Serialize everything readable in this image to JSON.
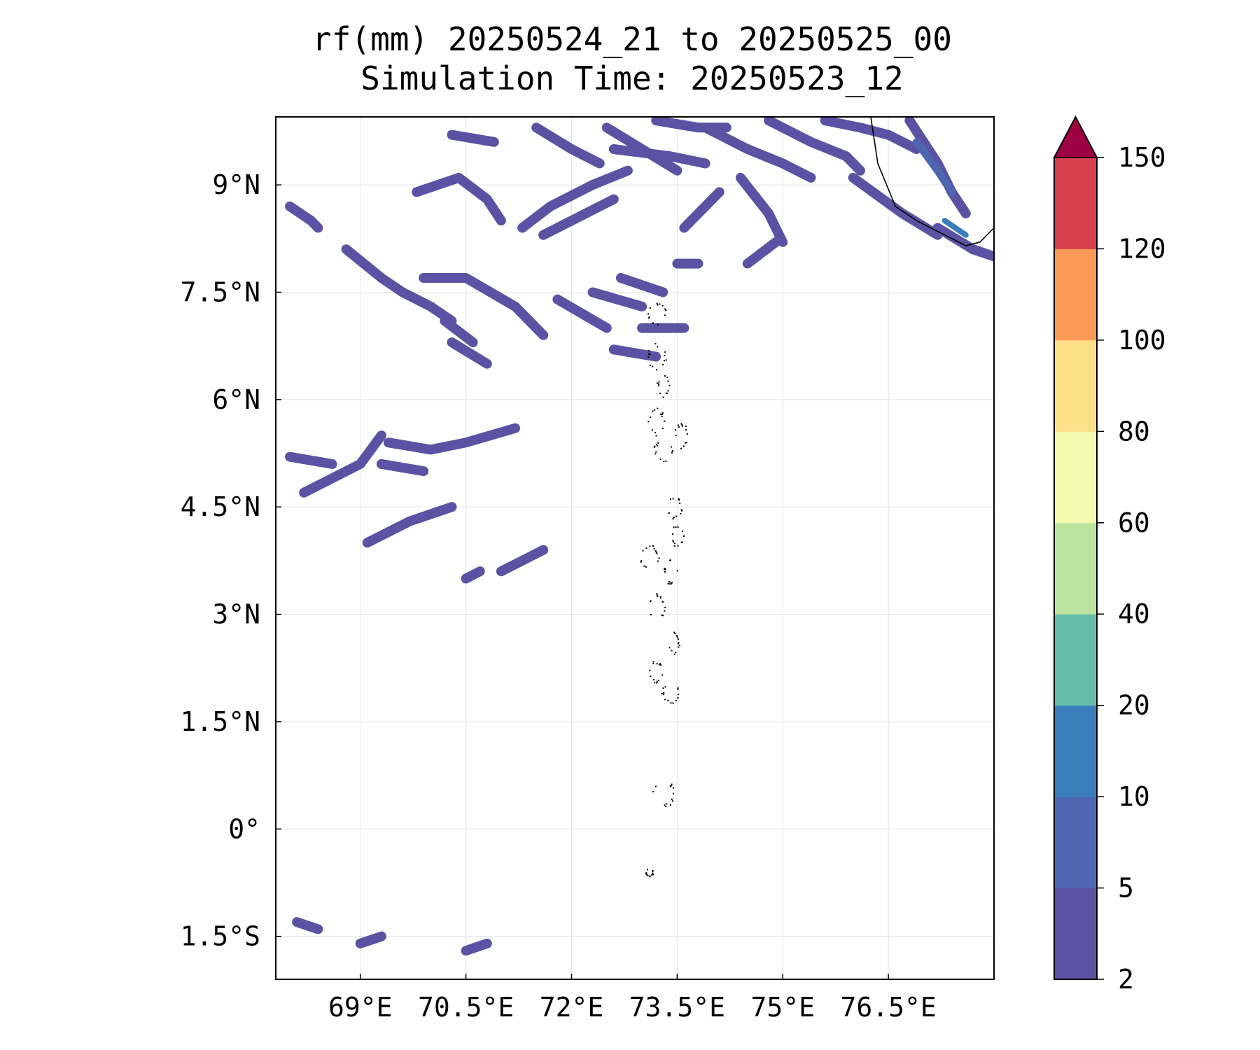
{
  "chart_data": {
    "type": "contour-map",
    "title": "rf(mm) 20250524_21 to 20250525_00",
    "subtitle": "Simulation Time: 20250523_12",
    "xlabel": "",
    "ylabel": "",
    "xlim": [
      67.8,
      78.0
    ],
    "ylim": [
      -2.1,
      9.95
    ],
    "x_ticks": [
      {
        "value": 69.0,
        "label": "69°E"
      },
      {
        "value": 70.5,
        "label": "70.5°E"
      },
      {
        "value": 72.0,
        "label": "72°E"
      },
      {
        "value": 73.5,
        "label": "73.5°E"
      },
      {
        "value": 75.0,
        "label": "75°E"
      },
      {
        "value": 76.5,
        "label": "76.5°E"
      }
    ],
    "y_ticks": [
      {
        "value": 9.0,
        "label": "9°N"
      },
      {
        "value": 7.5,
        "label": "7.5°N"
      },
      {
        "value": 6.0,
        "label": "6°N"
      },
      {
        "value": 4.5,
        "label": "4.5°N"
      },
      {
        "value": 3.0,
        "label": "3°N"
      },
      {
        "value": 1.5,
        "label": "1.5°N"
      },
      {
        "value": 0.0,
        "label": "0°"
      },
      {
        "value": -1.5,
        "label": "1.5°S"
      }
    ],
    "grid": true,
    "legend": "colorbar-right",
    "colorbar": {
      "levels": [
        2,
        5,
        10,
        20,
        40,
        60,
        80,
        100,
        120,
        150
      ],
      "labels": [
        "2",
        "5",
        "10",
        "20",
        "40",
        "60",
        "80",
        "100",
        "120",
        "150"
      ],
      "colors": [
        "#5b52a3",
        "#4f66b0",
        "#3a7fb9",
        "#63bda9",
        "#bce39f",
        "#f3faaf",
        "#fde18a",
        "#f99a56",
        "#d8404e",
        "#9e0142"
      ],
      "extend": "max"
    },
    "rain_bands": [
      {
        "points": [
          [
            68.0,
            8.7
          ],
          [
            68.3,
            8.5
          ],
          [
            68.4,
            8.4
          ]
        ],
        "level": 0
      },
      {
        "points": [
          [
            68.8,
            8.1
          ],
          [
            69.3,
            7.7
          ],
          [
            69.6,
            7.5
          ],
          [
            70.0,
            7.3
          ],
          [
            70.3,
            7.1
          ]
        ],
        "level": 0
      },
      {
        "points": [
          [
            69.8,
            8.9
          ],
          [
            70.4,
            9.1
          ],
          [
            70.8,
            8.8
          ],
          [
            71.0,
            8.5
          ]
        ],
        "level": 0
      },
      {
        "points": [
          [
            70.3,
            9.7
          ],
          [
            70.9,
            9.6
          ]
        ],
        "level": 0
      },
      {
        "points": [
          [
            71.3,
            8.4
          ],
          [
            71.7,
            8.7
          ],
          [
            72.3,
            9.0
          ],
          [
            72.8,
            9.2
          ]
        ],
        "level": 0
      },
      {
        "points": [
          [
            71.5,
            9.8
          ],
          [
            72.0,
            9.5
          ],
          [
            72.4,
            9.3
          ]
        ],
        "level": 0
      },
      {
        "points": [
          [
            72.5,
            9.8
          ],
          [
            73.0,
            9.5
          ],
          [
            73.5,
            9.2
          ]
        ],
        "level": 0
      },
      {
        "points": [
          [
            72.6,
            9.5
          ],
          [
            73.4,
            9.4
          ],
          [
            73.9,
            9.3
          ]
        ],
        "level": 0
      },
      {
        "points": [
          [
            73.2,
            9.9
          ],
          [
            73.8,
            9.8
          ],
          [
            74.2,
            9.8
          ]
        ],
        "level": 0
      },
      {
        "points": [
          [
            73.9,
            9.8
          ],
          [
            74.5,
            9.5
          ],
          [
            75.0,
            9.3
          ],
          [
            75.4,
            9.1
          ]
        ],
        "level": 0
      },
      {
        "points": [
          [
            74.8,
            9.9
          ],
          [
            75.4,
            9.6
          ],
          [
            75.9,
            9.4
          ],
          [
            76.1,
            9.2
          ]
        ],
        "level": 0
      },
      {
        "points": [
          [
            75.6,
            9.9
          ],
          [
            76.1,
            9.8
          ],
          [
            76.5,
            9.7
          ],
          [
            76.9,
            9.5
          ]
        ],
        "level": 0
      },
      {
        "points": [
          [
            74.4,
            9.1
          ],
          [
            74.8,
            8.6
          ],
          [
            75.0,
            8.2
          ]
        ],
        "level": 0
      },
      {
        "points": [
          [
            76.0,
            9.1
          ],
          [
            76.7,
            8.6
          ],
          [
            77.2,
            8.3
          ]
        ],
        "level": 0
      },
      {
        "points": [
          [
            76.8,
            9.9
          ],
          [
            77.2,
            9.3
          ],
          [
            77.4,
            8.9
          ],
          [
            77.6,
            8.6
          ]
        ],
        "level": 0
      },
      {
        "points": [
          [
            77.2,
            8.4
          ],
          [
            77.7,
            8.1
          ],
          [
            78.0,
            8.0
          ]
        ],
        "level": 0
      },
      {
        "points": [
          [
            76.9,
            9.6
          ],
          [
            77.2,
            9.2
          ],
          [
            77.4,
            8.9
          ]
        ],
        "level": 1
      },
      {
        "points": [
          [
            77.3,
            8.5
          ],
          [
            77.6,
            8.3
          ]
        ],
        "level": 2
      },
      {
        "points": [
          [
            71.6,
            8.3
          ],
          [
            72.2,
            8.6
          ],
          [
            72.6,
            8.8
          ]
        ],
        "level": 0
      },
      {
        "points": [
          [
            73.6,
            8.4
          ],
          [
            74.1,
            8.9
          ]
        ],
        "level": 0
      },
      {
        "points": [
          [
            74.5,
            7.9
          ],
          [
            74.9,
            8.2
          ]
        ],
        "level": 0
      },
      {
        "points": [
          [
            69.9,
            7.7
          ],
          [
            70.5,
            7.7
          ],
          [
            71.2,
            7.3
          ],
          [
            71.6,
            6.9
          ]
        ],
        "level": 0
      },
      {
        "points": [
          [
            70.2,
            7.1
          ],
          [
            70.6,
            6.8
          ]
        ],
        "level": 0
      },
      {
        "points": [
          [
            70.3,
            6.8
          ],
          [
            70.8,
            6.5
          ]
        ],
        "level": 0
      },
      {
        "points": [
          [
            71.8,
            7.4
          ],
          [
            72.5,
            7.0
          ]
        ],
        "level": 0
      },
      {
        "points": [
          [
            72.3,
            7.5
          ],
          [
            73.0,
            7.3
          ]
        ],
        "level": 0
      },
      {
        "points": [
          [
            73.0,
            7.0
          ],
          [
            73.6,
            7.0
          ]
        ],
        "level": 0
      },
      {
        "points": [
          [
            68.0,
            5.2
          ],
          [
            68.6,
            5.1
          ]
        ],
        "level": 0
      },
      {
        "points": [
          [
            68.2,
            4.7
          ],
          [
            69.0,
            5.1
          ],
          [
            69.3,
            5.5
          ]
        ],
        "level": 0
      },
      {
        "points": [
          [
            69.4,
            5.4
          ],
          [
            70.0,
            5.3
          ],
          [
            70.5,
            5.4
          ],
          [
            71.2,
            5.6
          ]
        ],
        "level": 0
      },
      {
        "points": [
          [
            69.3,
            5.1
          ],
          [
            69.9,
            5.0
          ]
        ],
        "level": 0
      },
      {
        "points": [
          [
            69.1,
            4.0
          ],
          [
            69.7,
            4.3
          ],
          [
            70.3,
            4.5
          ]
        ],
        "level": 0
      },
      {
        "points": [
          [
            70.5,
            3.5
          ],
          [
            70.7,
            3.6
          ]
        ],
        "level": 0
      },
      {
        "points": [
          [
            71.0,
            3.6
          ],
          [
            71.6,
            3.9
          ]
        ],
        "level": 0
      },
      {
        "points": [
          [
            68.1,
            -1.3
          ],
          [
            68.4,
            -1.4
          ]
        ],
        "level": 0
      },
      {
        "points": [
          [
            70.5,
            -1.7
          ],
          [
            70.8,
            -1.6
          ]
        ],
        "level": 0
      },
      {
        "points": [
          [
            69.0,
            -1.6
          ],
          [
            69.3,
            -1.5
          ]
        ],
        "level": 0
      },
      {
        "points": [
          [
            72.6,
            6.7
          ],
          [
            73.2,
            6.6
          ]
        ],
        "level": 0
      },
      {
        "points": [
          [
            72.7,
            7.7
          ],
          [
            73.3,
            7.5
          ]
        ],
        "level": 0
      },
      {
        "points": [
          [
            73.5,
            7.9
          ],
          [
            73.8,
            7.9
          ]
        ],
        "level": 0
      }
    ],
    "coastline": [
      [
        76.25,
        9.95
      ],
      [
        76.35,
        9.3
      ],
      [
        76.6,
        8.7
      ],
      [
        76.9,
        8.5
      ],
      [
        77.3,
        8.3
      ],
      [
        77.6,
        8.15
      ],
      [
        77.8,
        8.2
      ],
      [
        78.0,
        8.4
      ]
    ]
  }
}
